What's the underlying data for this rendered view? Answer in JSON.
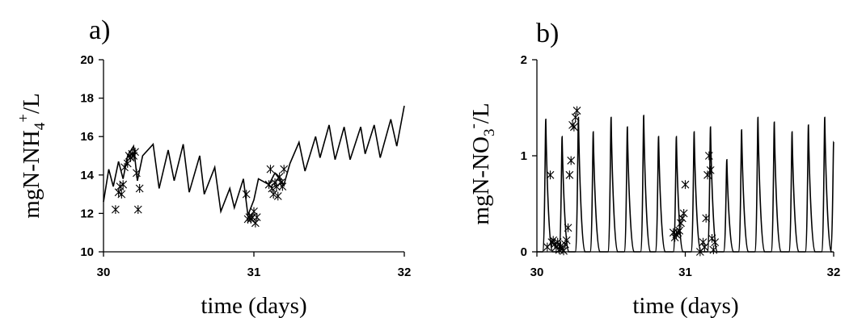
{
  "chart_data": [
    {
      "type": "line",
      "panel_label": "a)",
      "xlabel": "time (days)",
      "ylabel_parts": {
        "main": "mgN-NH",
        "sub": "4",
        "sup": "+",
        "tail": "/L"
      },
      "xlim": [
        30,
        32
      ],
      "ylim": [
        10,
        20
      ],
      "xticks": [
        30,
        31,
        32
      ],
      "yticks": [
        10,
        12,
        14,
        16,
        18,
        20
      ],
      "grid": false,
      "legend": "none",
      "series": [
        {
          "style": "line",
          "x": [
            30.0,
            30.035,
            30.065,
            30.1,
            30.13,
            30.16,
            30.2,
            30.225,
            30.26,
            30.33,
            30.37,
            30.43,
            30.47,
            30.53,
            30.57,
            30.64,
            30.67,
            30.74,
            30.78,
            30.84,
            30.87,
            30.93,
            30.96,
            31.0,
            31.03,
            31.1,
            31.14,
            31.2,
            31.24,
            31.3,
            31.34,
            31.41,
            31.44,
            31.5,
            31.54,
            31.6,
            31.64,
            31.71,
            31.74,
            31.8,
            31.84,
            31.91,
            31.95,
            32.0
          ],
          "y": [
            12.6,
            14.3,
            13.4,
            14.7,
            13.8,
            15.0,
            15.5,
            13.7,
            15.0,
            15.6,
            13.3,
            15.3,
            13.7,
            15.6,
            13.1,
            15.0,
            13.0,
            14.4,
            12.1,
            13.3,
            12.3,
            13.8,
            11.9,
            12.7,
            13.8,
            13.5,
            14.1,
            13.5,
            14.6,
            15.7,
            14.2,
            16.0,
            14.9,
            16.6,
            14.8,
            16.5,
            14.8,
            16.5,
            15.1,
            16.6,
            14.9,
            16.9,
            15.5,
            17.6
          ]
        },
        {
          "style": "markers",
          "x": [
            30.08,
            30.1,
            30.11,
            30.12,
            30.13,
            30.14,
            30.16,
            30.17,
            30.18,
            30.19,
            30.2,
            30.21,
            30.22,
            30.23,
            30.24,
            30.95,
            30.96,
            30.97,
            30.98,
            30.99,
            31.0,
            31.01,
            31.02,
            31.1,
            31.11,
            31.12,
            31.13,
            31.14,
            31.15,
            31.16,
            31.17,
            31.18,
            31.19,
            31.2
          ],
          "y": [
            12.2,
            13.1,
            13.4,
            13.0,
            13.5,
            14.4,
            14.6,
            15.0,
            14.9,
            15.1,
            15.0,
            15.2,
            14.1,
            12.2,
            13.3,
            13.0,
            11.7,
            11.8,
            11.7,
            11.8,
            12.1,
            11.5,
            11.8,
            13.5,
            14.3,
            13.3,
            13.0,
            13.6,
            13.4,
            12.9,
            13.9,
            13.6,
            13.4,
            14.3
          ]
        }
      ]
    },
    {
      "type": "line",
      "panel_label": "b)",
      "xlabel": "time (days)",
      "ylabel_parts": {
        "main": "mgN-NO",
        "sub": "3",
        "sup": "-",
        "tail": "/L"
      },
      "xlim": [
        30,
        32
      ],
      "ylim": [
        0,
        2
      ],
      "xticks": [
        30,
        31,
        32
      ],
      "yticks": [
        0,
        1,
        2
      ],
      "grid": false,
      "legend": "none",
      "series": [
        {
          "style": "pulses",
          "peaks_x": [
            30.06,
            30.17,
            30.28,
            30.38,
            30.5,
            30.61,
            30.72,
            30.82,
            30.94,
            31.06,
            31.17,
            31.28,
            31.38,
            31.49,
            31.6,
            31.72,
            31.83,
            31.94
          ],
          "peaks_y": [
            1.38,
            1.2,
            1.4,
            1.25,
            1.4,
            1.3,
            1.42,
            1.2,
            1.2,
            1.25,
            1.3,
            0.96,
            1.27,
            1.4,
            1.35,
            1.25,
            1.32,
            1.4
          ],
          "end_x": 32.0,
          "end_y": 1.15
        },
        {
          "style": "markers",
          "x": [
            30.07,
            30.09,
            30.1,
            30.11,
            30.12,
            30.13,
            30.14,
            30.15,
            30.16,
            30.17,
            30.18,
            30.19,
            30.2,
            30.21,
            30.22,
            30.23,
            30.24,
            30.25,
            30.26,
            30.27,
            30.92,
            30.93,
            30.94,
            30.95,
            30.96,
            30.97,
            30.98,
            30.99,
            31.0,
            31.1,
            31.12,
            31.13,
            31.14,
            31.15,
            31.16,
            31.17,
            31.18,
            31.19,
            31.2
          ],
          "y": [
            0.05,
            0.8,
            0.1,
            0.12,
            0.08,
            0.05,
            0.1,
            0.02,
            0.06,
            0.03,
            0.01,
            0.08,
            0.12,
            0.25,
            0.8,
            0.95,
            1.32,
            1.3,
            1.4,
            1.47,
            0.2,
            0.15,
            0.18,
            0.2,
            0.22,
            0.3,
            0.35,
            0.4,
            0.7,
            0.0,
            0.1,
            0.05,
            0.35,
            0.8,
            1.0,
            0.85,
            0.14,
            0.02,
            0.1
          ]
        }
      ]
    }
  ]
}
